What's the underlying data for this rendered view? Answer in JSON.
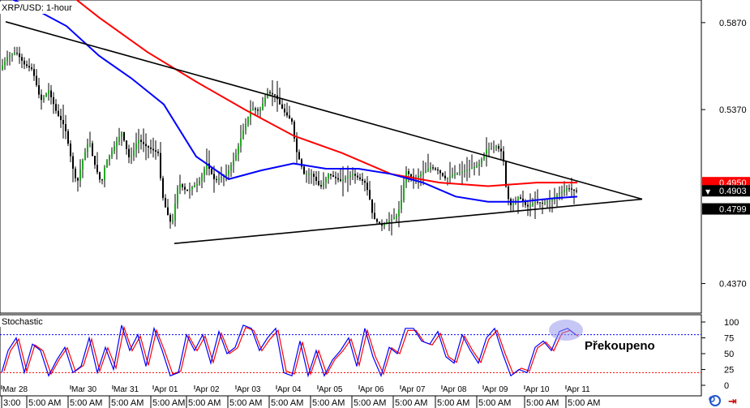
{
  "chart_data": {
    "type": "candlestick",
    "title": "XRP/USD: 1-hour",
    "price_axis": {
      "ticks": [
        "0.5870",
        "0.5370",
        "0.4370"
      ],
      "range": [
        0.42,
        0.6
      ]
    },
    "price_labels": [
      {
        "text": "0.4950",
        "value": 0.495,
        "bg": "#ff0000",
        "color": "#ffffff"
      },
      {
        "text": "0.4903",
        "value": 0.4903,
        "bg": "#000000",
        "color": "#ffffff",
        "marker": "▼"
      },
      {
        "text": "0.4799",
        "value": 0.4799,
        "bg": "#000000",
        "color": "#ffffff"
      }
    ],
    "x_labels": {
      "dates": [
        "Mar 28",
        "Mar 30",
        "Mar 31",
        "Apr 01",
        "Apr 02",
        "Apr 03",
        "Apr 04",
        "Apr 05",
        "Apr 06",
        "Apr 07",
        "Apr 08",
        "Apr 09",
        "Apr 10",
        "Apr 11"
      ],
      "times": [
        "3:00",
        "5:00 AM",
        "5:00 AM",
        "5:00 AM",
        "5:00 AM",
        "5:00 AM",
        "5:00 AM",
        "5:00 AM",
        "5:00 AM",
        "5:00 AM",
        "5:00 AM",
        "5:00 AM",
        "5:00 AM",
        "5:00 AM",
        "5:00 AM"
      ]
    },
    "price_path": [
      [
        0,
        0.56
      ],
      [
        10,
        0.568
      ],
      [
        20,
        0.57
      ],
      [
        30,
        0.563
      ],
      [
        40,
        0.56
      ],
      [
        50,
        0.542
      ],
      [
        60,
        0.548
      ],
      [
        70,
        0.535
      ],
      [
        80,
        0.527
      ],
      [
        90,
        0.503
      ],
      [
        95,
        0.494
      ],
      [
        100,
        0.505
      ],
      [
        110,
        0.52
      ],
      [
        115,
        0.508
      ],
      [
        125,
        0.494
      ],
      [
        130,
        0.506
      ],
      [
        140,
        0.515
      ],
      [
        150,
        0.524
      ],
      [
        160,
        0.508
      ],
      [
        170,
        0.52
      ],
      [
        180,
        0.516
      ],
      [
        195,
        0.512
      ],
      [
        200,
        0.488
      ],
      [
        205,
        0.479
      ],
      [
        212,
        0.47
      ],
      [
        215,
        0.48
      ],
      [
        220,
        0.495
      ],
      [
        230,
        0.49
      ],
      [
        245,
        0.495
      ],
      [
        255,
        0.506
      ],
      [
        265,
        0.496
      ],
      [
        280,
        0.5
      ],
      [
        290,
        0.51
      ],
      [
        300,
        0.525
      ],
      [
        310,
        0.538
      ],
      [
        320,
        0.536
      ],
      [
        330,
        0.547
      ],
      [
        340,
        0.545
      ],
      [
        345,
        0.54
      ],
      [
        350,
        0.536
      ],
      [
        360,
        0.53
      ],
      [
        365,
        0.514
      ],
      [
        375,
        0.5
      ],
      [
        385,
        0.5
      ],
      [
        395,
        0.492
      ],
      [
        405,
        0.5
      ],
      [
        420,
        0.496
      ],
      [
        435,
        0.5
      ],
      [
        450,
        0.495
      ],
      [
        455,
        0.488
      ],
      [
        460,
        0.475
      ],
      [
        470,
        0.47
      ],
      [
        480,
        0.473
      ],
      [
        490,
        0.476
      ],
      [
        495,
        0.485
      ],
      [
        500,
        0.502
      ],
      [
        510,
        0.497
      ],
      [
        520,
        0.5
      ],
      [
        530,
        0.504
      ],
      [
        540,
        0.502
      ],
      [
        550,
        0.497
      ],
      [
        560,
        0.5
      ],
      [
        575,
        0.502
      ],
      [
        590,
        0.505
      ],
      [
        600,
        0.514
      ],
      [
        612,
        0.516
      ],
      [
        620,
        0.512
      ],
      [
        625,
        0.488
      ],
      [
        630,
        0.482
      ],
      [
        640,
        0.487
      ],
      [
        650,
        0.481
      ],
      [
        660,
        0.484
      ],
      [
        670,
        0.483
      ],
      [
        680,
        0.485
      ],
      [
        690,
        0.489
      ],
      [
        700,
        0.492
      ],
      [
        710,
        0.49
      ]
    ],
    "series": [
      {
        "name": "",
        "color": "#ff0000",
        "points": [
          [
            0,
            0.625
          ],
          [
            60,
            0.612
          ],
          [
            120,
            0.59
          ],
          [
            180,
            0.57
          ],
          [
            240,
            0.553
          ],
          [
            300,
            0.537
          ],
          [
            360,
            0.522
          ],
          [
            420,
            0.512
          ],
          [
            480,
            0.5
          ],
          [
            540,
            0.495
          ],
          [
            600,
            0.493
          ],
          [
            660,
            0.495
          ],
          [
            710,
            0.495
          ]
        ]
      },
      {
        "name": "",
        "color": "#0000ff",
        "points": [
          [
            0,
            0.603
          ],
          [
            40,
            0.595
          ],
          [
            80,
            0.585
          ],
          [
            120,
            0.568
          ],
          [
            160,
            0.555
          ],
          [
            200,
            0.54
          ],
          [
            240,
            0.51
          ],
          [
            280,
            0.497
          ],
          [
            320,
            0.502
          ],
          [
            360,
            0.506
          ],
          [
            400,
            0.503
          ],
          [
            440,
            0.503
          ],
          [
            480,
            0.5
          ],
          [
            520,
            0.495
          ],
          [
            560,
            0.487
          ],
          [
            600,
            0.484
          ],
          [
            640,
            0.484
          ],
          [
            680,
            0.486
          ],
          [
            710,
            0.487
          ]
        ]
      }
    ],
    "trendlines": [
      {
        "from": [
          5,
          0.5875
        ],
        "to": [
          790,
          0.4855
        ]
      },
      {
        "from": [
          213,
          0.46
        ],
        "to": [
          790,
          0.4855
        ]
      }
    ],
    "stochastic": {
      "title": "Stochastic",
      "ticks": [
        "100",
        "75",
        "50",
        "25",
        "0"
      ],
      "overbought": 80,
      "oversold": 20,
      "annotation": "Překoupeno",
      "k_path": [
        [
          0,
          20
        ],
        [
          8,
          55
        ],
        [
          18,
          75
        ],
        [
          28,
          20
        ],
        [
          38,
          65
        ],
        [
          48,
          55
        ],
        [
          58,
          15
        ],
        [
          68,
          40
        ],
        [
          78,
          60
        ],
        [
          88,
          20
        ],
        [
          98,
          30
        ],
        [
          108,
          75
        ],
        [
          118,
          20
        ],
        [
          128,
          60
        ],
        [
          138,
          25
        ],
        [
          148,
          95
        ],
        [
          158,
          55
        ],
        [
          168,
          80
        ],
        [
          178,
          30
        ],
        [
          188,
          90
        ],
        [
          198,
          55
        ],
        [
          208,
          15
        ],
        [
          218,
          20
        ],
        [
          228,
          80
        ],
        [
          238,
          55
        ],
        [
          248,
          80
        ],
        [
          258,
          35
        ],
        [
          268,
          85
        ],
        [
          278,
          50
        ],
        [
          288,
          60
        ],
        [
          298,
          95
        ],
        [
          308,
          90
        ],
        [
          318,
          55
        ],
        [
          328,
          75
        ],
        [
          338,
          90
        ],
        [
          348,
          20
        ],
        [
          358,
          15
        ],
        [
          368,
          70
        ],
        [
          378,
          15
        ],
        [
          388,
          55
        ],
        [
          398,
          15
        ],
        [
          408,
          40
        ],
        [
          418,
          55
        ],
        [
          428,
          75
        ],
        [
          438,
          30
        ],
        [
          448,
          90
        ],
        [
          458,
          45
        ],
        [
          468,
          15
        ],
        [
          478,
          60
        ],
        [
          488,
          50
        ],
        [
          498,
          90
        ],
        [
          508,
          90
        ],
        [
          518,
          70
        ],
        [
          528,
          65
        ],
        [
          538,
          85
        ],
        [
          548,
          45
        ],
        [
          558,
          35
        ],
        [
          568,
          80
        ],
        [
          578,
          55
        ],
        [
          588,
          35
        ],
        [
          598,
          75
        ],
        [
          608,
          90
        ],
        [
          618,
          50
        ],
        [
          628,
          15
        ],
        [
          638,
          25
        ],
        [
          648,
          20
        ],
        [
          658,
          60
        ],
        [
          668,
          70
        ],
        [
          678,
          55
        ],
        [
          688,
          85
        ],
        [
          698,
          90
        ],
        [
          708,
          80
        ]
      ],
      "d_shift": 3
    }
  }
}
